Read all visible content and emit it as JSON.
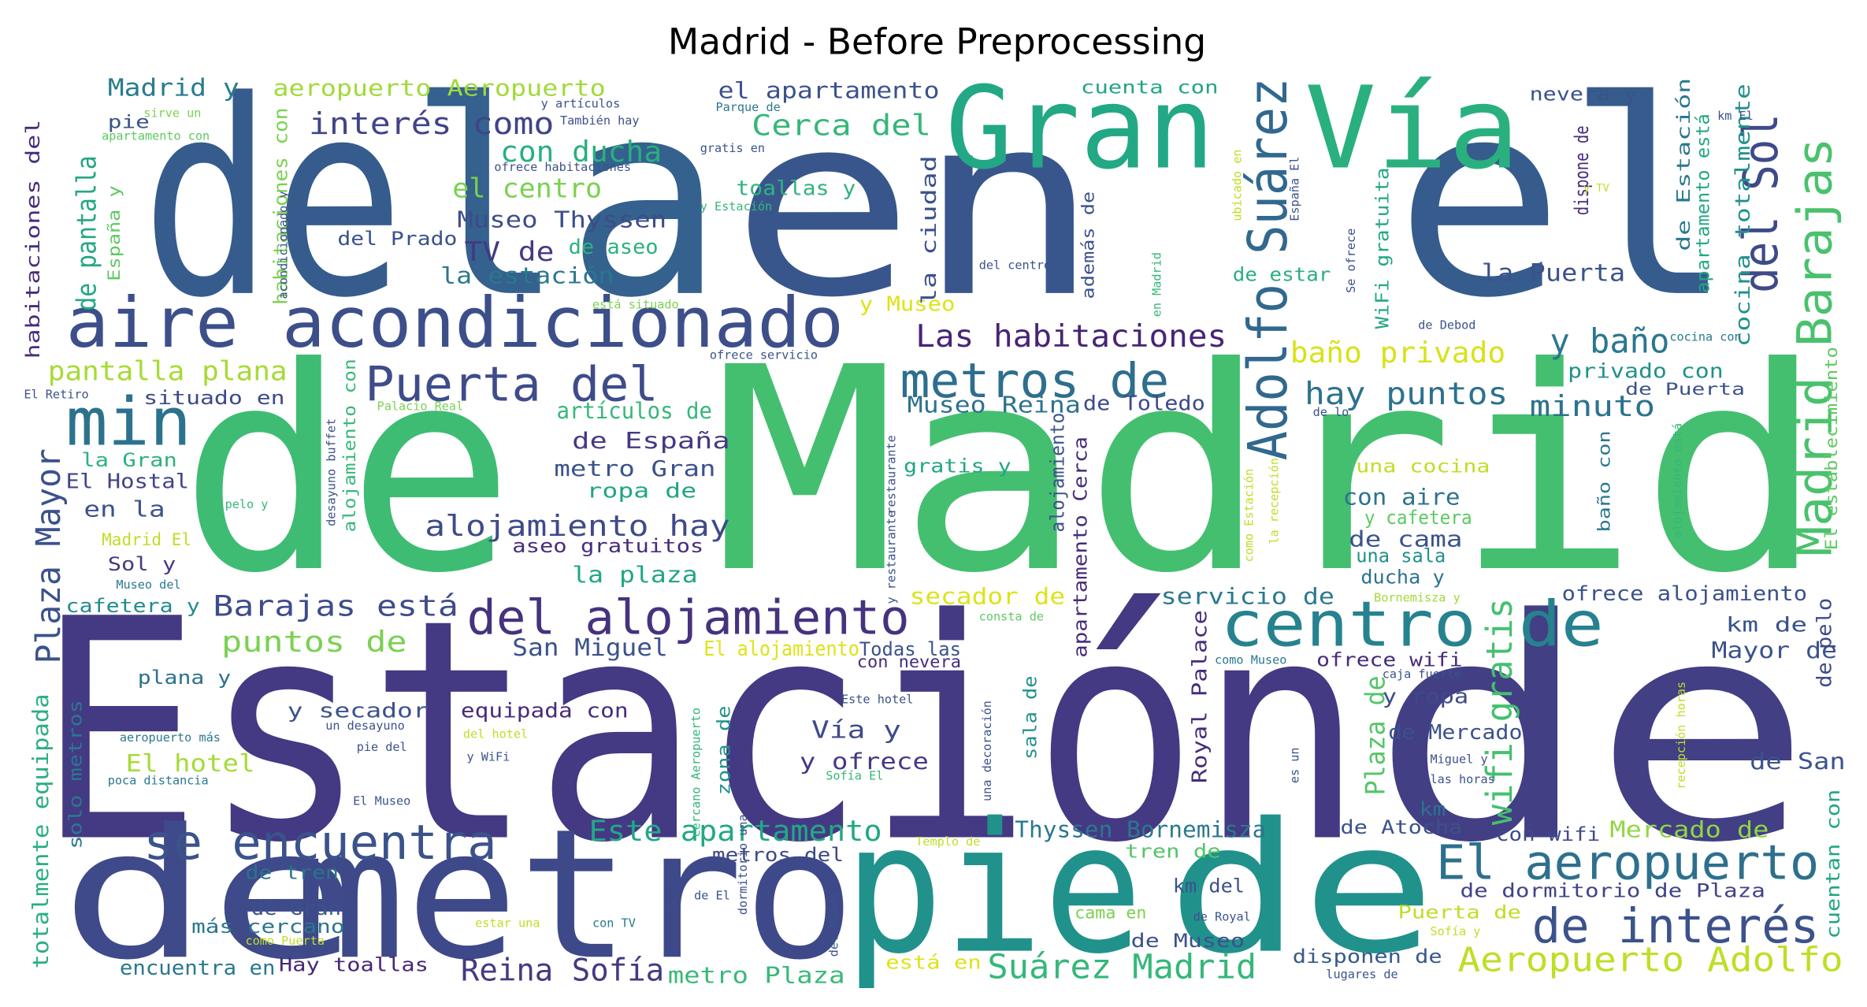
{
  "chart_data": {
    "type": "wordcloud",
    "title": "Madrid - Before Preprocessing",
    "words": [
      {
        "text": "de",
        "color": "#365c8d"
      },
      {
        "text": "la",
        "color": "#34618d"
      },
      {
        "text": "en",
        "color": "#39568c"
      },
      {
        "text": "el",
        "color": "#365c8d"
      },
      {
        "text": "Gran",
        "color": "#22a884"
      },
      {
        "text": "Vía",
        "color": "#2ab07f"
      },
      {
        "text": "de",
        "color": "#3fbc73"
      },
      {
        "text": "Madrid",
        "color": "#44bf70"
      },
      {
        "text": "Estación",
        "color": "#443983"
      },
      {
        "text": "de",
        "color": "#423f85"
      },
      {
        "text": "de",
        "color": "#3e4a89"
      },
      {
        "text": "metro",
        "color": "#3e4989"
      },
      {
        "text": "pie",
        "color": "#21918c"
      },
      {
        "text": "de",
        "color": "#21918c"
      },
      {
        "text": "aire acondicionado",
        "color": "#3c4f8a"
      },
      {
        "text": "min",
        "color": "#2c728e"
      },
      {
        "text": "Puerta del",
        "color": "#3e4c8a"
      },
      {
        "text": "metros de",
        "color": "#2e6e8e"
      },
      {
        "text": "centro de",
        "color": "#26828e"
      },
      {
        "text": "del alojamiento",
        "color": "#46327e"
      },
      {
        "text": "se encuentra",
        "color": "#3b528b"
      },
      {
        "text": "El aeropuerto",
        "color": "#2d708e"
      },
      {
        "text": "de interés",
        "color": "#3b528b"
      },
      {
        "text": "Aeropuerto Adolfo",
        "color": "#bddf26"
      },
      {
        "text": "Suárez Madrid",
        "color": "#35b779"
      },
      {
        "text": "Reina Sofía",
        "color": "#443a83"
      },
      {
        "text": "Las habitaciones",
        "color": "#482475"
      },
      {
        "text": "Adolfo Suárez",
        "color": "#31688e"
      },
      {
        "text": "Madrid Barajas",
        "color": "#4ac16d"
      },
      {
        "text": "del Sol",
        "color": "#3e4a89"
      },
      {
        "text": "Plaza Mayor",
        "color": "#3b528b"
      },
      {
        "text": "wifi gratis",
        "color": "#46c06f"
      },
      {
        "text": "y baño",
        "color": "#2a788e"
      },
      {
        "text": "baño privado",
        "color": "#d8e219"
      },
      {
        "text": "hay puntos",
        "color": "#2c728e"
      },
      {
        "text": "minuto",
        "color": "#2c728e"
      },
      {
        "text": "interés como",
        "color": "#414487"
      },
      {
        "text": "con ducha",
        "color": "#29af7f"
      },
      {
        "text": "Cerca del",
        "color": "#35b779"
      },
      {
        "text": "el apartamento",
        "color": "#3b528b"
      },
      {
        "text": "el centro",
        "color": "#7ad151"
      },
      {
        "text": "Museo Thyssen",
        "color": "#3e4c8a"
      },
      {
        "text": "TV de",
        "color": "#443983"
      },
      {
        "text": "de aseo",
        "color": "#2db27d"
      },
      {
        "text": "la estación",
        "color": "#2a788e"
      },
      {
        "text": "Madrid y",
        "color": "#287c8e"
      },
      {
        "text": "aeropuerto Aeropuerto",
        "color": "#a0da39"
      },
      {
        "text": "pie",
        "color": "#3b528b"
      },
      {
        "text": "del Prado",
        "color": "#3b528b"
      },
      {
        "text": "toallas y",
        "color": "#2fb47c"
      },
      {
        "text": "y Museo",
        "color": "#dde318"
      },
      {
        "text": "pantalla plana",
        "color": "#a5db36"
      },
      {
        "text": "Barajas está",
        "color": "#3e4c8a"
      },
      {
        "text": "puntos de",
        "color": "#7ad151"
      },
      {
        "text": "artículos de",
        "color": "#35b779"
      },
      {
        "text": "de España",
        "color": "#443983"
      },
      {
        "text": "metro Gran",
        "color": "#3b528b"
      },
      {
        "text": "ropa de",
        "color": "#21a685"
      },
      {
        "text": "alojamiento hay",
        "color": "#3e4a89"
      },
      {
        "text": "aseo gratuitos",
        "color": "#472c7a"
      },
      {
        "text": "la plaza",
        "color": "#21a685"
      },
      {
        "text": "San Miguel",
        "color": "#3b528b"
      },
      {
        "text": "situado en",
        "color": "#3e4a89"
      },
      {
        "text": "la Gran",
        "color": "#2db27d"
      },
      {
        "text": "El Hostal",
        "color": "#414487"
      },
      {
        "text": "en la",
        "color": "#3b528b"
      },
      {
        "text": "Madrid El",
        "color": "#bddf26"
      },
      {
        "text": "Sol y",
        "color": "#443a83"
      },
      {
        "text": "cafetera y",
        "color": "#228c8d"
      },
      {
        "text": "plana y",
        "color": "#2c728e"
      },
      {
        "text": "y secador",
        "color": "#3b528b"
      },
      {
        "text": "equipada con",
        "color": "#472c7a"
      },
      {
        "text": "El hotel",
        "color": "#a5db36"
      },
      {
        "text": "de tren",
        "color": "#2c728e"
      },
      {
        "text": "de Gran",
        "color": "#3b528b"
      },
      {
        "text": "más cercano",
        "color": "#2a788e"
      },
      {
        "text": "encuentra en",
        "color": "#2a788e"
      },
      {
        "text": "Hay toallas",
        "color": "#482878"
      },
      {
        "text": "metro Plaza",
        "color": "#38b977"
      },
      {
        "text": "Este apartamento",
        "color": "#22a884"
      },
      {
        "text": "metros del",
        "color": "#3e4a89"
      },
      {
        "text": "Vía y",
        "color": "#3e4a89"
      },
      {
        "text": "y ofrece",
        "color": "#443983"
      },
      {
        "text": "El alojamiento",
        "color": "#dde318"
      },
      {
        "text": "Todas las",
        "color": "#3b528b"
      },
      {
        "text": "con nevera",
        "color": "#472c7a"
      },
      {
        "text": "secador de",
        "color": "#dde318"
      },
      {
        "text": "Thyssen Bornemisza",
        "color": "#2a788e"
      },
      {
        "text": "servicio de",
        "color": "#2a788e"
      },
      {
        "text": "de Toledo",
        "color": "#3e4a89"
      },
      {
        "text": "Museo Reina",
        "color": "#2c728e"
      },
      {
        "text": "gratis y",
        "color": "#21a685"
      },
      {
        "text": "Royal Palace",
        "color": "#472c7a"
      },
      {
        "text": "km del",
        "color": "#3b528b"
      },
      {
        "text": "cama en",
        "color": "#7ad151"
      },
      {
        "text": "de Museo",
        "color": "#3b528b"
      },
      {
        "text": "está en",
        "color": "#dde318"
      },
      {
        "text": "disponen de",
        "color": "#38598c"
      },
      {
        "text": "Puerta de",
        "color": "#bddf26"
      },
      {
        "text": "de Atocha",
        "color": "#3b528b"
      },
      {
        "text": "tren de",
        "color": "#54c568"
      },
      {
        "text": "con wifi",
        "color": "#3e4a89"
      },
      {
        "text": "Mercado de",
        "color": "#90d743"
      },
      {
        "text": "de dormitorio de Plaza",
        "color": "#414487"
      },
      {
        "text": "de Mercado",
        "color": "#3b528b"
      },
      {
        "text": "y ropa",
        "color": "#3e4a89"
      },
      {
        "text": "ofrece wifi",
        "color": "#472c7a"
      },
      {
        "text": "km",
        "color": "#2c728e"
      },
      {
        "text": "de San",
        "color": "#3b528b"
      },
      {
        "text": "Mayor de",
        "color": "#3b528b"
      },
      {
        "text": "km de",
        "color": "#3b528b"
      },
      {
        "text": "ofrece alojamiento",
        "color": "#3b528b"
      },
      {
        "text": "con aire",
        "color": "#2c728e"
      },
      {
        "text": "y cafetera",
        "color": "#5ec962"
      },
      {
        "text": "de cama",
        "color": "#3b528b"
      },
      {
        "text": "una sala",
        "color": "#21918c"
      },
      {
        "text": "ducha y",
        "color": "#2c728e"
      },
      {
        "text": "una cocina",
        "color": "#bddf26"
      },
      {
        "text": "privado con",
        "color": "#21918c"
      },
      {
        "text": "de Puerta",
        "color": "#3b528b"
      },
      {
        "text": "la Puerta",
        "color": "#3b528b"
      },
      {
        "text": "de estar",
        "color": "#29af7f"
      },
      {
        "text": "cuenta con",
        "color": "#21a685"
      },
      {
        "text": "nevera y",
        "color": "#3b528b"
      },
      {
        "text": "cocina totalmente",
        "color": "#21918c"
      },
      {
        "text": "El establecimiento",
        "color": "#5ec962"
      },
      {
        "text": "apartamento está",
        "color": "#22a884"
      },
      {
        "text": "de Estación",
        "color": "#2a788e"
      },
      {
        "text": "dispone de",
        "color": "#472c7a"
      },
      {
        "text": "WiFi gratuita",
        "color": "#22a884"
      },
      {
        "text": "España y",
        "color": "#5ec962"
      },
      {
        "text": "de pantalla",
        "color": "#22a884"
      },
      {
        "text": "habitaciones del",
        "color": "#472c7a"
      },
      {
        "text": "habitaciones con",
        "color": "#7ad151"
      },
      {
        "text": "la ciudad",
        "color": "#3b528b"
      },
      {
        "text": "además de",
        "color": "#3b528b"
      },
      {
        "text": "alojamiento con",
        "color": "#35b779"
      },
      {
        "text": "apartamento Cerca",
        "color": "#472c7a"
      },
      {
        "text": "alojamiento",
        "color": "#3b528b"
      },
      {
        "text": "sala de",
        "color": "#21918c"
      },
      {
        "text": "zona de",
        "color": "#21918c"
      },
      {
        "text": "Plaza de",
        "color": "#54c568"
      },
      {
        "text": "totalmente equipada",
        "color": "#29af7f"
      },
      {
        "text": "solo metros",
        "color": "#2a788e"
      },
      {
        "text": "cuentan con",
        "color": "#21a685"
      },
      {
        "text": "de pelo",
        "color": "#3e4a89"
      },
      {
        "text": "baño con",
        "color": "#2a788e"
      },
      {
        "text": "caja fuerte",
        "color": "#3b528b"
      },
      {
        "text": "sirve un",
        "color": "#7ad151"
      },
      {
        "text": "apartamento con",
        "color": "#5ec962"
      },
      {
        "text": "y artículos",
        "color": "#3b528b"
      },
      {
        "text": "También hay",
        "color": "#3b528b"
      },
      {
        "text": "Parque de",
        "color": "#2a788e"
      },
      {
        "text": "gratis en",
        "color": "#3b528b"
      },
      {
        "text": "ofrece habitaciones",
        "color": "#3b528b"
      },
      {
        "text": "y Estación",
        "color": "#35b779"
      },
      {
        "text": "km El",
        "color": "#3b528b"
      },
      {
        "text": "El Retiro",
        "color": "#3b528b"
      },
      {
        "text": "Palacio Real",
        "color": "#7ad151"
      },
      {
        "text": "ofrece servicio",
        "color": "#3b528b"
      },
      {
        "text": "cocina con",
        "color": "#2a788e"
      },
      {
        "text": "de Debod",
        "color": "#3b528b"
      },
      {
        "text": "está situado",
        "color": "#7ad151"
      },
      {
        "text": "del centro",
        "color": "#3b528b"
      },
      {
        "text": "Se ofrece",
        "color": "#3b528b"
      },
      {
        "text": "pelo y",
        "color": "#35b779"
      },
      {
        "text": "Museo del",
        "color": "#2a788e"
      },
      {
        "text": "consta de",
        "color": "#5ec962"
      },
      {
        "text": "como Museo",
        "color": "#2a788e"
      },
      {
        "text": "Bornemisza y",
        "color": "#a0da39"
      },
      {
        "text": "Este hotel",
        "color": "#3b528b"
      },
      {
        "text": "un desayuno",
        "color": "#3b528b"
      },
      {
        "text": "del hotel",
        "color": "#bddf26"
      },
      {
        "text": "aeropuerto más",
        "color": "#2a788e"
      },
      {
        "text": "pie del",
        "color": "#3b528b"
      },
      {
        "text": "y WiFi",
        "color": "#3b528b"
      },
      {
        "text": "poca distancia",
        "color": "#2a788e"
      },
      {
        "text": "Miguel y",
        "color": "#3b528b"
      },
      {
        "text": "Sofía El",
        "color": "#35b779"
      },
      {
        "text": "El Museo",
        "color": "#3b528b"
      },
      {
        "text": "las horas",
        "color": "#3b528b"
      },
      {
        "text": "Templo de",
        "color": "#bddf26"
      },
      {
        "text": "de El",
        "color": "#3b528b"
      },
      {
        "text": "con TV",
        "color": "#2a788e"
      },
      {
        "text": "estar una",
        "color": "#bddf26"
      },
      {
        "text": "como Puerta",
        "color": "#bddf26"
      },
      {
        "text": "de Royal",
        "color": "#3b528b"
      },
      {
        "text": "Sofía y",
        "color": "#bddf26"
      },
      {
        "text": "lugares de",
        "color": "#3b528b"
      },
      {
        "text": "de lo",
        "color": "#3b528b"
      },
      {
        "text": "y TV",
        "color": "#bddf26"
      },
      {
        "text": "desayuno buffet",
        "color": "#3b528b"
      },
      {
        "text": "acondicionado y",
        "color": "#3b528b"
      },
      {
        "text": "ubicado en",
        "color": "#bddf26"
      },
      {
        "text": "España El",
        "color": "#3b528b"
      },
      {
        "text": "en Madrid",
        "color": "#35b779"
      },
      {
        "text": "y restaurante",
        "color": "#3b528b"
      },
      {
        "text": "cercano Aeropuerto",
        "color": "#35b779"
      },
      {
        "text": "dormitorio una",
        "color": "#3b528b"
      },
      {
        "text": "del Museo",
        "color": "#3b528b"
      },
      {
        "text": "es un",
        "color": "#3b528b"
      },
      {
        "text": "una decoración",
        "color": "#3b528b"
      },
      {
        "text": "recepción horas",
        "color": "#bddf26"
      },
      {
        "text": "como Estación",
        "color": "#bddf26"
      },
      {
        "text": "la recepción",
        "color": "#bddf26"
      },
      {
        "text": "alojamiento está",
        "color": "#35b779"
      },
      {
        "text": "restaurante",
        "color": "#3b528b"
      }
    ]
  }
}
